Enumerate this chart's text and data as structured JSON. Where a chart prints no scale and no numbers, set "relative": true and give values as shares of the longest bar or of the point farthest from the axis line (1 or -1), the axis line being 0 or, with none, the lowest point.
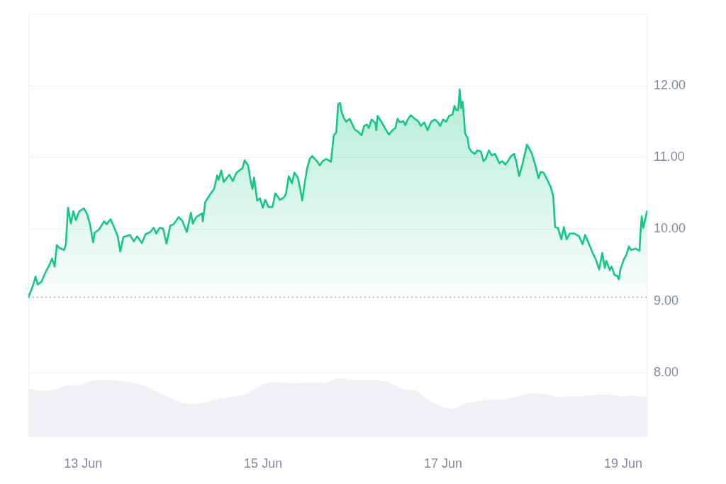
{
  "chart_data": [
    {
      "type": "area",
      "color": "#16c784",
      "x": [
        "--06-12T09:25",
        "--06-12T10:45",
        "--06-12T11:20",
        "--06-12T11:55",
        "--06-12T12:55",
        "--06-12T13:50",
        "--06-12T15:05",
        "--06-12T15:45",
        "--06-12T16:25",
        "--06-12T17:00",
        "--06-12T17:40",
        "--06-12T18:55",
        "--06-12T19:25",
        "--06-12T20:00",
        "--06-12T20:45",
        "--06-12T21:25",
        "--06-12T22:05",
        "--06-12T23:00",
        "--06-13T00:15",
        "--06-13T01:10",
        "--06-13T01:50",
        "--06-13T02:40",
        "--06-13T03:05",
        "--06-13T04:20",
        "--06-13T05:35",
        "--06-13T06:15",
        "--06-13T07:20",
        "--06-13T08:25",
        "--06-13T09:15",
        "--06-13T09:55",
        "--06-13T10:45",
        "--06-13T12:30",
        "--06-13T13:30",
        "--06-13T14:25",
        "--06-13T15:40",
        "--06-13T16:40",
        "--06-13T17:55",
        "--06-13T18:50",
        "--06-13T19:30",
        "--06-13T20:25",
        "--06-13T21:20",
        "--06-13T22:15",
        "--06-13T23:15",
        "--06-14T00:10",
        "--06-14T01:30",
        "--06-14T02:25",
        "--06-14T03:40",
        "--06-14T04:45",
        "--06-14T05:15",
        "--06-14T06:10",
        "--06-14T07:45",
        "--06-14T07:55",
        "--06-14T08:35",
        "--06-14T09:55",
        "--06-14T10:55",
        "--06-14T11:45",
        "--06-14T12:10",
        "--06-14T12:50",
        "--06-14T13:30",
        "--06-14T15:00",
        "--06-14T15:55",
        "--06-14T16:55",
        "--06-14T18:30",
        "--06-14T19:05",
        "--06-14T20:00",
        "--06-14T20:40",
        "--06-14T21:10",
        "--06-14T21:35",
        "--06-14T22:25",
        "--06-14T23:10",
        "--06-14T23:55",
        "--06-15T00:35",
        "--06-15T01:25",
        "--06-15T02:30",
        "--06-15T03:15",
        "--06-15T04:30",
        "--06-15T05:30",
        "--06-15T06:05",
        "--06-15T06:50",
        "--06-15T07:40",
        "--06-15T08:20",
        "--06-15T09:15",
        "--06-15T10:00",
        "--06-15T10:25",
        "--06-15T11:10",
        "--06-15T11:45",
        "--06-15T12:25",
        "--06-15T13:05",
        "--06-15T14:20",
        "--06-15T15:05",
        "--06-15T15:55",
        "--06-15T16:50",
        "--06-15T18:05",
        "--06-15T18:50",
        "--06-15T19:30",
        "--06-15T20:00",
        "--06-15T20:30",
        "--06-15T20:55",
        "--06-15T21:35",
        "--06-15T22:10",
        "--06-15T23:05",
        "--06-16T00:25",
        "--06-16T01:20",
        "--06-16T02:15",
        "--06-16T02:55",
        "--06-16T03:40",
        "--06-16T04:10",
        "--06-16T04:55",
        "--06-16T05:55",
        "--06-16T06:10",
        "--06-16T06:30",
        "--06-16T07:25",
        "--06-16T08:15",
        "--06-16T09:30",
        "--06-16T10:30",
        "--06-16T11:15",
        "--06-16T11:50",
        "--06-16T12:30",
        "--06-16T13:20",
        "--06-16T13:55",
        "--06-16T14:35",
        "--06-16T15:20",
        "--06-16T16:25",
        "--06-16T17:25",
        "--06-16T18:00",
        "--06-16T19:00",
        "--06-16T19:50",
        "--06-16T20:50",
        "--06-16T21:50",
        "--06-16T22:45",
        "--06-16T23:10",
        "--06-17T00:00",
        "--06-17T00:50",
        "--06-17T01:35",
        "--06-17T02:30",
        "--06-17T03:00",
        "--06-17T03:30",
        "--06-17T04:00",
        "--06-17T04:25",
        "--06-17T04:45",
        "--06-17T05:10",
        "--06-17T05:35",
        "--06-17T05:50",
        "--06-17T06:30",
        "--06-17T06:55",
        "--06-17T07:35",
        "--06-17T08:25",
        "--06-17T09:10",
        "--06-17T10:05",
        "--06-17T10:45",
        "--06-17T11:20",
        "--06-17T12:10",
        "--06-17T12:55",
        "--06-17T13:50",
        "--06-17T15:00",
        "--06-17T15:45",
        "--06-17T16:35",
        "--06-17T17:30",
        "--06-17T18:05",
        "--06-17T18:55",
        "--06-17T19:30",
        "--06-17T20:15",
        "--06-17T21:05",
        "--06-17T21:55",
        "--06-17T22:20",
        "--06-17T23:00",
        "--06-17T23:40",
        "--06-18T00:35",
        "--06-18T01:25",
        "--06-18T02:00",
        "--06-18T02:45",
        "--06-18T03:45",
        "--06-18T04:40",
        "--06-18T05:20",
        "--06-18T05:50",
        "--06-18T06:35",
        "--06-18T07:30",
        "--06-18T08:10",
        "--06-18T08:55",
        "--06-18T09:45",
        "--06-18T11:00",
        "--06-18T12:15",
        "--06-18T13:10",
        "--06-18T13:50",
        "--06-18T14:45",
        "--06-18T15:40",
        "--06-18T16:40",
        "--06-18T17:35",
        "--06-18T18:25",
        "--06-18T19:05",
        "--06-18T19:30",
        "--06-18T20:25",
        "--06-18T20:55",
        "--06-18T21:40",
        "--06-18T22:25",
        "--06-18T22:50",
        "--06-18T23:15",
        "--06-19T00:15",
        "--06-19T00:50",
        "--06-19T01:30",
        "--06-19T02:05",
        "--06-19T03:20",
        "--06-19T04:20",
        "--06-19T04:35",
        "--06-19T04:55",
        "--06-19T05:20",
        "--06-19T06:20"
      ],
      "values": [
        9.05,
        9.23,
        9.34,
        9.23,
        9.27,
        9.38,
        9.51,
        9.59,
        9.48,
        9.78,
        9.74,
        9.71,
        9.79,
        10.3,
        10.08,
        10.25,
        10.13,
        10.25,
        10.29,
        10.2,
        10.07,
        9.82,
        9.95,
        10.0,
        10.11,
        10.07,
        10.14,
        10.01,
        9.9,
        9.69,
        9.89,
        9.92,
        9.83,
        9.9,
        9.81,
        9.93,
        9.96,
        10.02,
        9.94,
        10.02,
        10.01,
        9.8,
        10.05,
        10.07,
        10.17,
        10.12,
        9.96,
        10.23,
        10.08,
        10.17,
        10.22,
        10.11,
        10.38,
        10.49,
        10.56,
        10.75,
        10.69,
        10.82,
        10.66,
        10.76,
        10.67,
        10.79,
        10.85,
        10.96,
        10.89,
        10.67,
        10.56,
        10.72,
        10.4,
        10.43,
        10.3,
        10.41,
        10.31,
        10.31,
        10.5,
        10.41,
        10.44,
        10.49,
        10.74,
        10.64,
        10.79,
        10.72,
        10.53,
        10.4,
        10.67,
        10.85,
        10.98,
        11.02,
        10.95,
        10.89,
        10.95,
        10.98,
        10.94,
        11.31,
        11.35,
        11.74,
        11.76,
        11.64,
        11.54,
        11.5,
        11.54,
        11.39,
        11.36,
        11.31,
        11.44,
        11.46,
        11.41,
        11.53,
        11.48,
        11.38,
        11.58,
        11.51,
        11.43,
        11.32,
        11.38,
        11.41,
        11.54,
        11.49,
        11.51,
        11.45,
        11.53,
        11.59,
        11.54,
        11.5,
        11.44,
        11.49,
        11.38,
        11.5,
        11.53,
        11.48,
        11.44,
        11.53,
        11.5,
        11.58,
        11.6,
        11.72,
        11.66,
        11.66,
        11.95,
        11.69,
        11.78,
        11.54,
        11.34,
        11.27,
        11.13,
        11.08,
        11.05,
        11.1,
        11.08,
        10.95,
        10.98,
        11.1,
        11.03,
        11.05,
        10.92,
        10.95,
        10.9,
        10.97,
        11.02,
        11.05,
        10.94,
        10.74,
        10.9,
        11.08,
        11.18,
        11.12,
        11.05,
        10.89,
        10.71,
        10.8,
        10.79,
        10.69,
        10.59,
        10.46,
        10.03,
        10.02,
        9.86,
        10.03,
        9.86,
        9.94,
        9.94,
        9.9,
        9.79,
        9.92,
        9.81,
        9.69,
        9.58,
        9.44,
        9.67,
        9.46,
        9.56,
        9.43,
        9.48,
        9.36,
        9.35,
        9.3,
        9.44,
        9.59,
        9.64,
        9.76,
        9.71,
        9.73,
        9.7,
        9.94,
        10.18,
        10.02,
        10.25
      ],
      "xlim": [
        "--06-12T09:25",
        "--06-19T06:25"
      ],
      "xticks": [
        {
          "value": "--06-13",
          "label": "13 Jun"
        },
        {
          "value": "--06-15",
          "label": "15 Jun"
        },
        {
          "value": "--06-17",
          "label": "17 Jun"
        },
        {
          "value": "--06-19",
          "label": "19 Jun"
        }
      ],
      "ylim": [
        7.1,
        13.0
      ],
      "yticks": [
        {
          "value": 8,
          "label": "8.00"
        },
        {
          "value": 9,
          "label": "9.00"
        },
        {
          "value": 10,
          "label": "10.00"
        },
        {
          "value": 11,
          "label": "11.00"
        },
        {
          "value": 12,
          "label": "12.00"
        }
      ],
      "grid": "y",
      "ref_lines": [
        {
          "axis": "y",
          "value": 9.05,
          "color": "#a1a7bb",
          "line_style": "dotted"
        }
      ]
    },
    {
      "type": "area",
      "relative": true,
      "color": "#eff1f4",
      "categories": [
        null,
        null,
        null,
        null,
        null,
        null,
        null,
        null,
        null,
        null,
        null,
        null,
        null,
        null,
        null,
        null,
        null,
        null,
        null,
        null,
        null,
        null,
        null,
        null,
        null,
        null,
        null,
        null,
        null,
        null,
        null,
        null,
        null,
        null,
        null,
        null,
        null,
        null,
        null,
        null,
        null,
        null,
        null,
        null,
        null,
        null,
        null,
        null,
        null
      ],
      "values": [
        0.82,
        0.78,
        0.8,
        0.87,
        0.88,
        0.96,
        0.97,
        0.96,
        0.92,
        0.87,
        0.76,
        0.66,
        0.57,
        0.56,
        0.6,
        0.66,
        0.69,
        0.73,
        0.89,
        0.93,
        0.92,
        0.91,
        0.93,
        0.91,
        1.0,
        0.97,
        0.97,
        0.97,
        0.93,
        0.81,
        0.79,
        0.63,
        0.51,
        0.47,
        0.58,
        0.61,
        0.63,
        0.64,
        0.69,
        0.74,
        0.73,
        0.68,
        0.69,
        0.69,
        0.72,
        0.72,
        0.69,
        0.7,
        0.68
      ]
    }
  ]
}
